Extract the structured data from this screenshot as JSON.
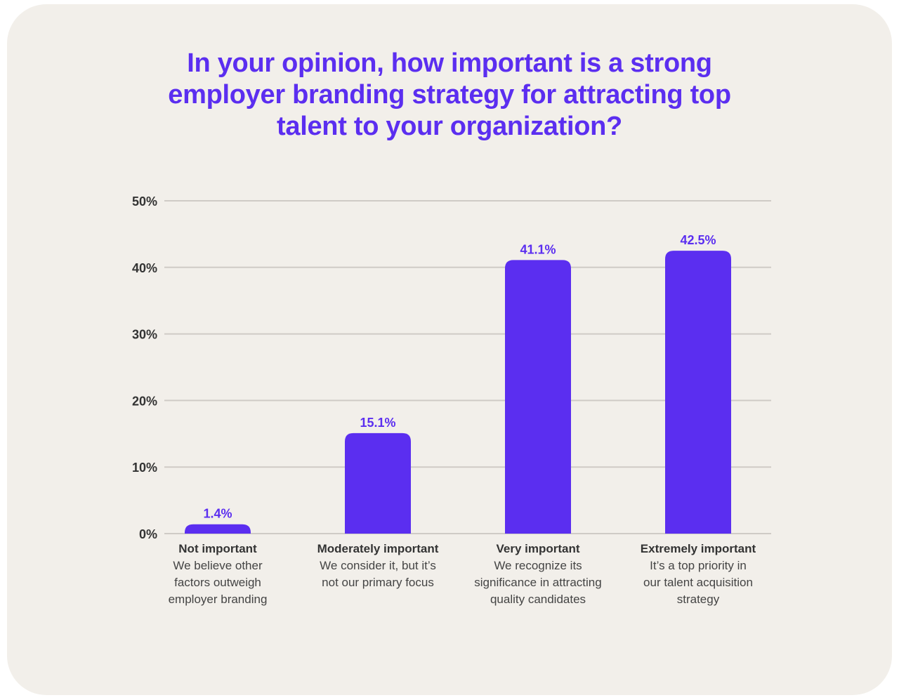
{
  "chart_data": {
    "type": "bar",
    "title_lines": [
      "In your opinion, how important is a strong",
      "employer branding strategy for attracting top",
      "talent to your organization?"
    ],
    "categories": [
      "Not important",
      "Moderately important",
      "Very important",
      "Extremely important"
    ],
    "descriptions": [
      [
        "We believe other",
        "factors outweigh",
        "employer branding"
      ],
      [
        "We consider it, but it’s",
        "not our primary focus"
      ],
      [
        "We recognize its",
        "significance in attracting",
        "quality candidates"
      ],
      [
        "It’s a top priority in",
        "our talent acquisition",
        "strategy"
      ]
    ],
    "values": [
      1.4,
      15.1,
      41.1,
      42.5
    ],
    "value_labels": [
      "1.4%",
      "15.1%",
      "41.1%",
      "42.5%"
    ],
    "yticks": [
      "0%",
      "10%",
      "20%",
      "30%",
      "40%",
      "50%"
    ],
    "ylim": [
      0,
      50
    ],
    "grid": true,
    "colors": {
      "bar": "#5b2ef0",
      "title": "#5b2ef0",
      "background": "#f2efea"
    }
  }
}
